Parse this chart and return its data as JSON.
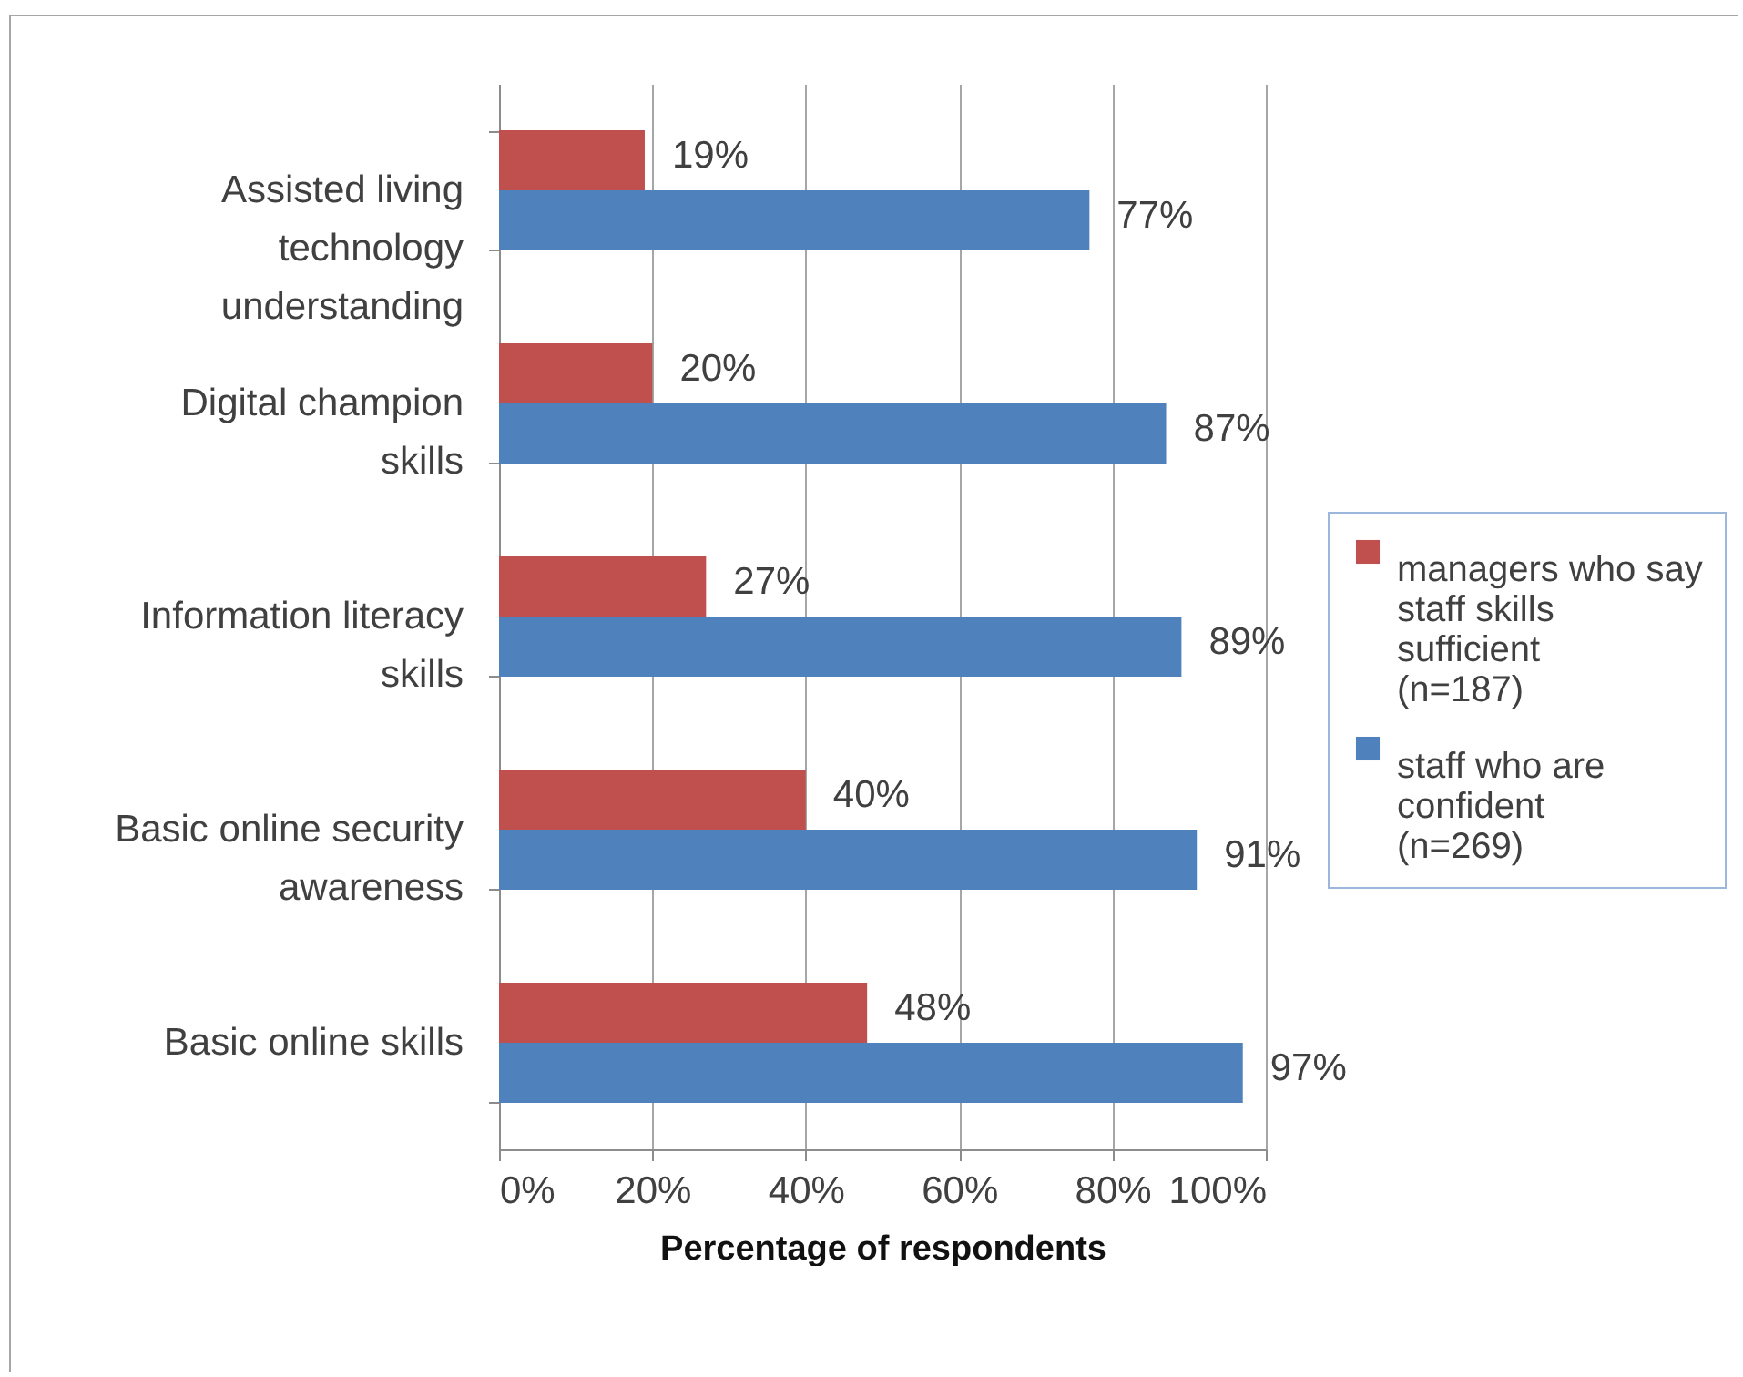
{
  "chart_data": {
    "type": "bar",
    "orientation": "horizontal",
    "categories": [
      "Assisted living technology understanding",
      "Digital champion skills",
      "Information literacy skills",
      "Basic online security awareness",
      "Basic online skills"
    ],
    "series": [
      {
        "name": "managers who say staff skills sufficient (n=187)",
        "color": "#c0504d",
        "values": [
          19,
          20,
          27,
          40,
          48
        ],
        "value_labels": [
          "19%",
          "20%",
          "27%",
          "40%",
          "48%"
        ]
      },
      {
        "name": "staff who are confident (n=269)",
        "color": "#4f81bd",
        "values": [
          77,
          87,
          89,
          91,
          97
        ],
        "value_labels": [
          "77%",
          "87%",
          "89%",
          "91%",
          "97%"
        ]
      }
    ],
    "xlabel": "Percentage of respondents",
    "xlim": [
      0,
      100
    ],
    "xticks": [
      {
        "value": 0,
        "label": "0%"
      },
      {
        "value": 20,
        "label": "20%"
      },
      {
        "value": 40,
        "label": "40%"
      },
      {
        "value": 60,
        "label": "60%"
      },
      {
        "value": 80,
        "label": "80%"
      },
      {
        "value": 100,
        "label": "100%"
      }
    ],
    "grid": "x",
    "legend": "right"
  }
}
